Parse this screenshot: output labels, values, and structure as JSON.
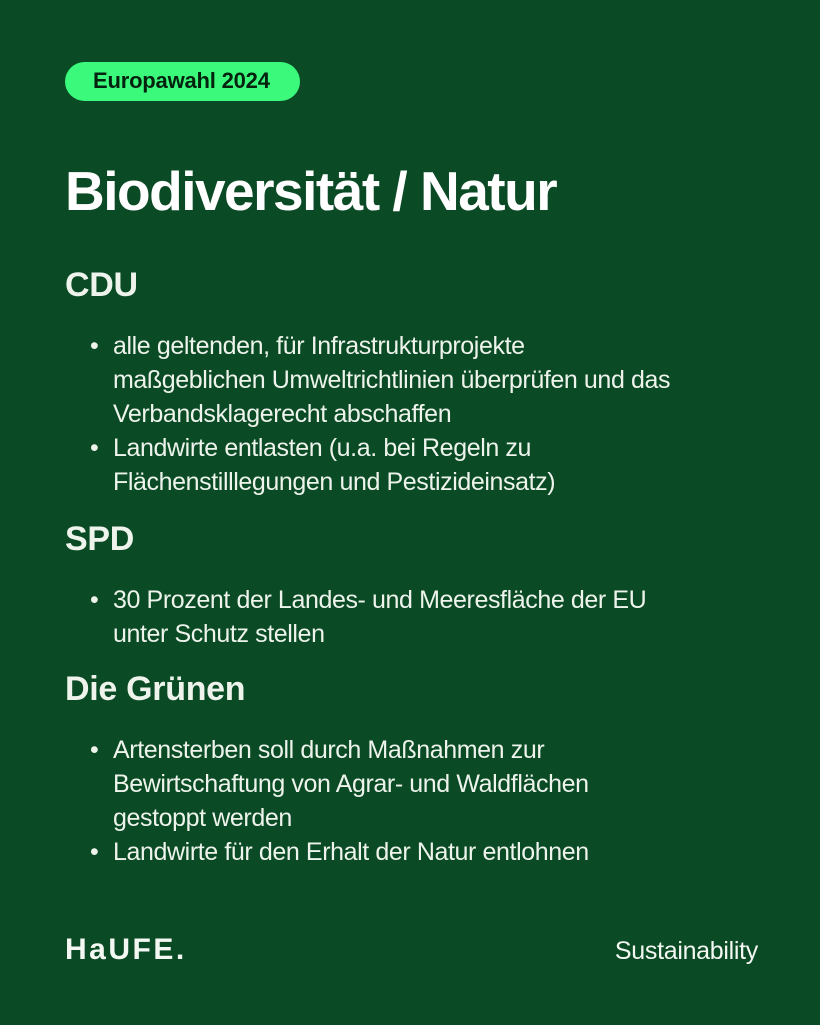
{
  "badge": {
    "label": "Europawahl 2024"
  },
  "title": "Biodiversität / Natur",
  "sections": [
    {
      "name": "CDU",
      "bullets": [
        "alle geltenden, für Infrastrukturprojekte\nmaßgeblichen Umweltrichtlinien überprüfen und das\nVerbandsklagerecht abschaffen",
        "Landwirte entlasten (u.a. bei Regeln zu\nFlächenstilllegungen und Pestizideinsatz)"
      ]
    },
    {
      "name": "SPD",
      "bullets": [
        "30 Prozent der Landes- und Meeresfläche der EU\nunter Schutz stellen"
      ]
    },
    {
      "name": "Die Grünen",
      "bullets": [
        "Artensterben soll durch Maßnahmen zur\nBewirtschaftung von Agrar- und Waldflächen\ngestoppt werden",
        "Landwirte für den Erhalt der Natur entlohnen"
      ]
    }
  ],
  "footer": {
    "logo": "HaUFE.",
    "label": "Sustainability"
  },
  "colors": {
    "background": "#0a4a25",
    "badge_background": "#3bf97b",
    "badge_text": "#04230f",
    "title_text": "#ffffff",
    "body_text": "#eef4ec"
  }
}
